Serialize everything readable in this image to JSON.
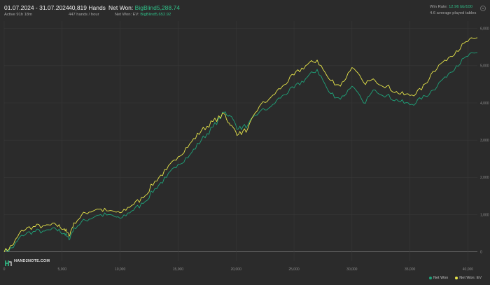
{
  "header": {
    "date_range": "01.07.2024 - 31.07.2024",
    "active": "Active 91h 18m",
    "hands": "40,819 Hands",
    "hands_rate": "447 hands / hour",
    "net_won_label": "Net Won:",
    "net_won_value": "BigBlind5,288.74",
    "net_won_ev_label": "Net Won: EV:",
    "net_won_ev_value": "BigBlind5,652.92",
    "win_rate_label": "Win Rate:",
    "win_rate_value": "12.96 bb/100",
    "tables": "4.6 average played tables"
  },
  "logo": {
    "text": "HAND2NOTE.COM"
  },
  "colors": {
    "net_won": "#1fa37a",
    "net_won_ev": "#e8e64a",
    "background": "#2b2b2b",
    "grid": "#3a3a3a"
  },
  "chart_data": {
    "type": "line",
    "x_ticks": [
      "0",
      "5,000",
      "10,000",
      "15,000",
      "20,000",
      "25,000",
      "30,000",
      "35,000",
      "40,000"
    ],
    "y_ticks": [
      "0",
      "1,000",
      "2,000",
      "3,000",
      "4,000",
      "5,000",
      "6,000"
    ],
    "xlim": [
      0,
      40819
    ],
    "ylim": [
      -250,
      6200
    ],
    "grid": true,
    "legend_position": "bottom-right",
    "x": [
      0,
      800,
      1500,
      2500,
      3500,
      4500,
      5200,
      5600,
      6000,
      7000,
      8000,
      9000,
      10000,
      11000,
      12000,
      13000,
      14000,
      15000,
      16000,
      17000,
      18000,
      19000,
      19500,
      20200,
      21000,
      22000,
      23000,
      24000,
      25000,
      26000,
      27000,
      28000,
      29000,
      30000,
      31000,
      32000,
      33000,
      34000,
      35000,
      36000,
      37000,
      38000,
      39000,
      40000,
      40819
    ],
    "series": [
      {
        "name": "Net Won",
        "color": "#1fa37a",
        "values": [
          0,
          120,
          450,
          550,
          560,
          600,
          500,
          320,
          650,
          850,
          980,
          1000,
          900,
          1100,
          1300,
          1700,
          2000,
          2350,
          2600,
          3000,
          3350,
          3750,
          3650,
          3300,
          3400,
          3750,
          3900,
          4200,
          4400,
          4650,
          4900,
          4300,
          4100,
          4450,
          4000,
          4350,
          4200,
          4050,
          3950,
          4100,
          4350,
          4700,
          5000,
          5250,
          5350
        ]
      },
      {
        "name": "Net Won: EV",
        "color": "#e8e64a",
        "values": [
          0,
          200,
          580,
          680,
          700,
          720,
          620,
          420,
          780,
          1050,
          1150,
          1100,
          1050,
          1250,
          1450,
          1900,
          2200,
          2550,
          2900,
          3250,
          3500,
          3700,
          3400,
          3150,
          3300,
          3900,
          4150,
          4450,
          4750,
          5000,
          5150,
          4650,
          4450,
          4950,
          4550,
          4600,
          4450,
          4250,
          4200,
          4350,
          4850,
          5150,
          5400,
          5650,
          5750
        ]
      }
    ]
  }
}
